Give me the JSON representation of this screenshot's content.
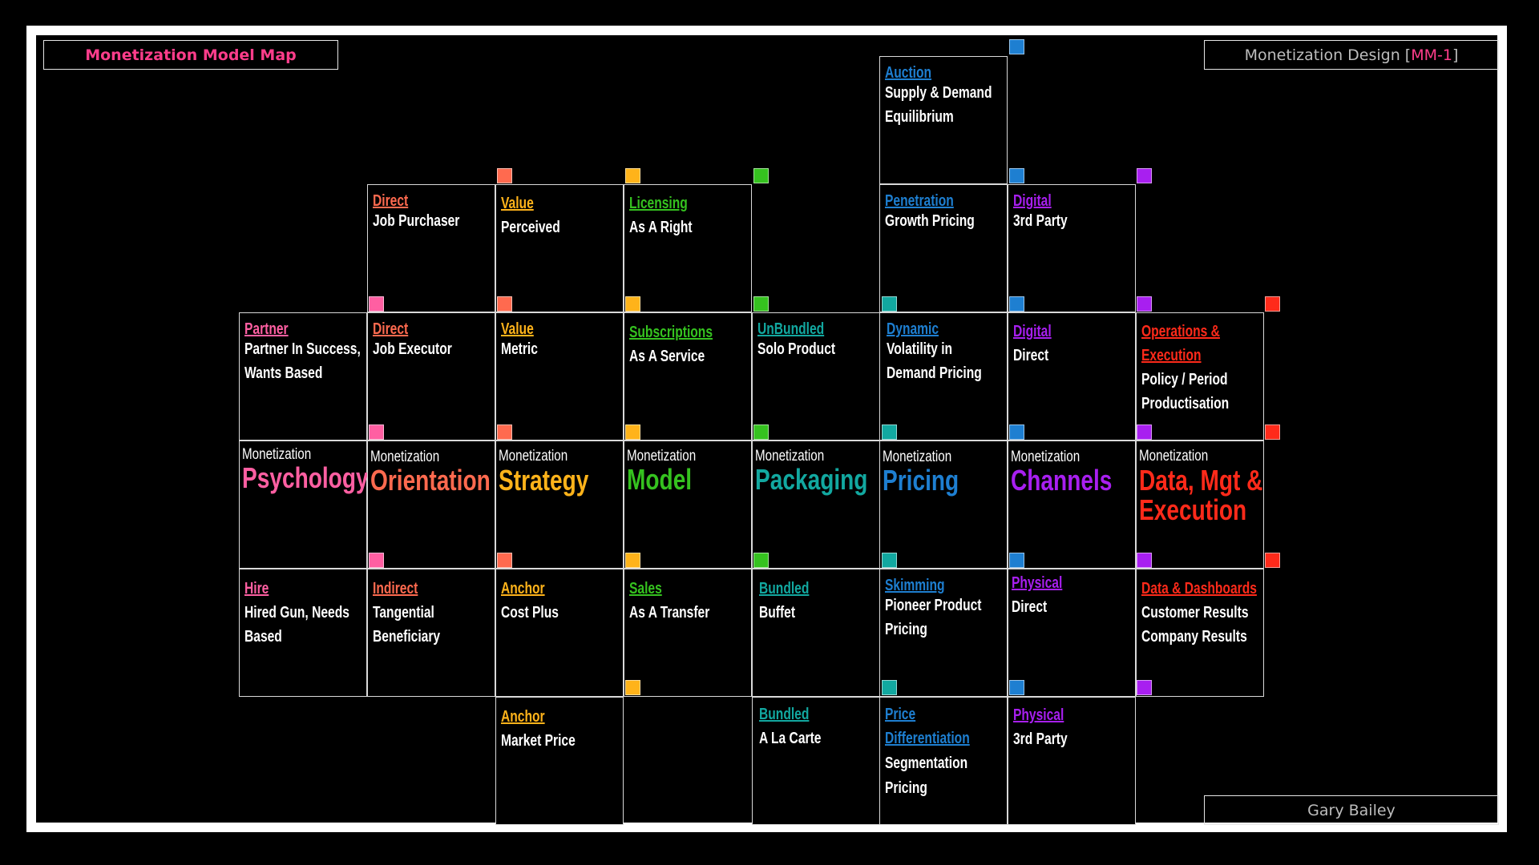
{
  "header": {
    "title": "Monetization Model Map",
    "series_label": "Monetization Design [",
    "series_code": "MM-1",
    "series_close": "]",
    "author": "Gary Bailey"
  },
  "colors": {
    "psychology": "#ff5fa2",
    "orientation": "#ff6a4f",
    "strategy": "#ffb31a",
    "model": "#35c21f",
    "packaging": "#12a8a0",
    "pricing": "#1e7fd1",
    "channels": "#a81ff0",
    "data": "#ff2a1a"
  },
  "categories": {
    "prefix": "Monetization",
    "psychology": "Psychology",
    "orientation": "Orientation",
    "strategy": "Strategy",
    "model": "Model",
    "packaging": "Packaging",
    "pricing": "Pricing",
    "channels": "Channels",
    "data_line1": "Data, Mgt &",
    "data_line2": "Execution"
  },
  "cells": {
    "auction": {
      "tag": "Auction",
      "d1": "Supply & Demand",
      "d2": "Equilibrium"
    },
    "direct_purchaser": {
      "tag": "Direct",
      "d1": "Job Purchaser"
    },
    "value_perceived": {
      "tag": "Value",
      "d1": "Perceived"
    },
    "licensing": {
      "tag": "Licensing",
      "d1": "As A Right"
    },
    "penetration": {
      "tag": "Penetration",
      "d1": "Growth Pricing"
    },
    "digital_3rd": {
      "tag": "Digital",
      "d1": "3rd Party"
    },
    "partner": {
      "tag": "Partner",
      "d1": "Partner In Success,",
      "d2": "Wants Based"
    },
    "direct_executor": {
      "tag": "Direct",
      "d1": "Job Executor"
    },
    "value_metric": {
      "tag": "Value",
      "d1": "Metric"
    },
    "subscriptions": {
      "tag": "Subscriptions",
      "d1": "As A Service"
    },
    "unbundled": {
      "tag": "UnBundled",
      "d1": "Solo Product"
    },
    "dynamic": {
      "tag": "Dynamic",
      "d1": "Volatility in",
      "d2": "Demand Pricing"
    },
    "digital_direct": {
      "tag": "Digital",
      "d1": "Direct"
    },
    "operations": {
      "tag1": "Operations &",
      "tag2": "Execution",
      "d1": "Policy / Period",
      "d2": "Productisation"
    },
    "hire": {
      "tag": "Hire",
      "d1": "Hired Gun, Needs",
      "d2": "Based"
    },
    "indirect": {
      "tag": "Indirect",
      "d1": "Tangential",
      "d2": "Beneficiary"
    },
    "anchor_cost": {
      "tag": "Anchor",
      "d1": "Cost Plus"
    },
    "sales": {
      "tag": "Sales",
      "d1": "As A Transfer"
    },
    "bundled_buffet": {
      "tag": "Bundled",
      "d1": "Buffet"
    },
    "skimming": {
      "tag": "Skimming",
      "d1": "Pioneer Product",
      "d2": "Pricing"
    },
    "physical_direct": {
      "tag": "Physical",
      "d1": "Direct"
    },
    "data_dashboards": {
      "tag": "Data & Dashboards",
      "d1": "Customer Results",
      "d2": "Company Results"
    },
    "anchor_market": {
      "tag": "Anchor",
      "d1": "Market Price"
    },
    "bundled_alacarte": {
      "tag": "Bundled",
      "d1": "A La Carte"
    },
    "price_diff": {
      "tag1": "Price",
      "tag2": "Differentiation",
      "d1": "Segmentation",
      "d2": "Pricing"
    },
    "physical_3rd": {
      "tag": "Physical",
      "d1": "3rd Party"
    }
  }
}
